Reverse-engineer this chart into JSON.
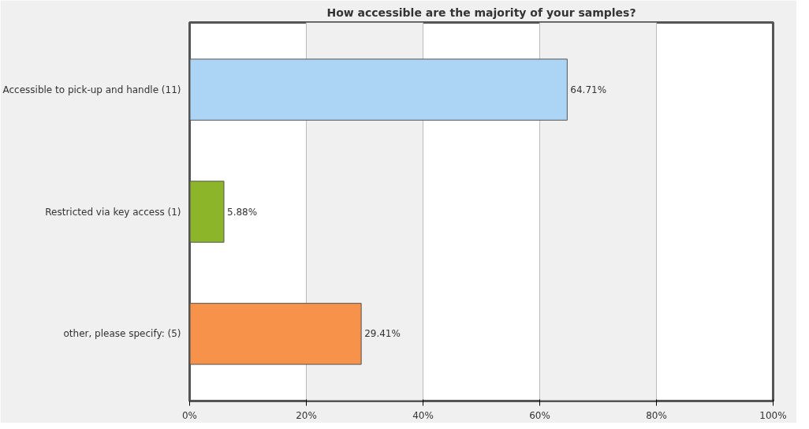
{
  "chart_data": {
    "type": "bar",
    "orientation": "horizontal",
    "title": "How accessible are the majority of your samples?",
    "categories": [
      "Accessible to pick-up and handle (11)",
      "Restricted via key access (1)",
      "other, please specify: (5)"
    ],
    "values": [
      64.71,
      5.88,
      29.41
    ],
    "colors": [
      "#acd4f5",
      "#8db52a",
      "#f7924a"
    ],
    "value_labels": [
      "64.71%",
      "5.88%",
      "29.41%"
    ],
    "xlim": [
      0,
      100
    ],
    "xticks": [
      {
        "value": 0,
        "label": "0%"
      },
      {
        "value": 20,
        "label": "20%"
      },
      {
        "value": 40,
        "label": "40%"
      },
      {
        "value": 60,
        "label": "60%"
      },
      {
        "value": 80,
        "label": "80%"
      },
      {
        "value": 100,
        "label": "100%"
      }
    ],
    "grid": "x"
  }
}
